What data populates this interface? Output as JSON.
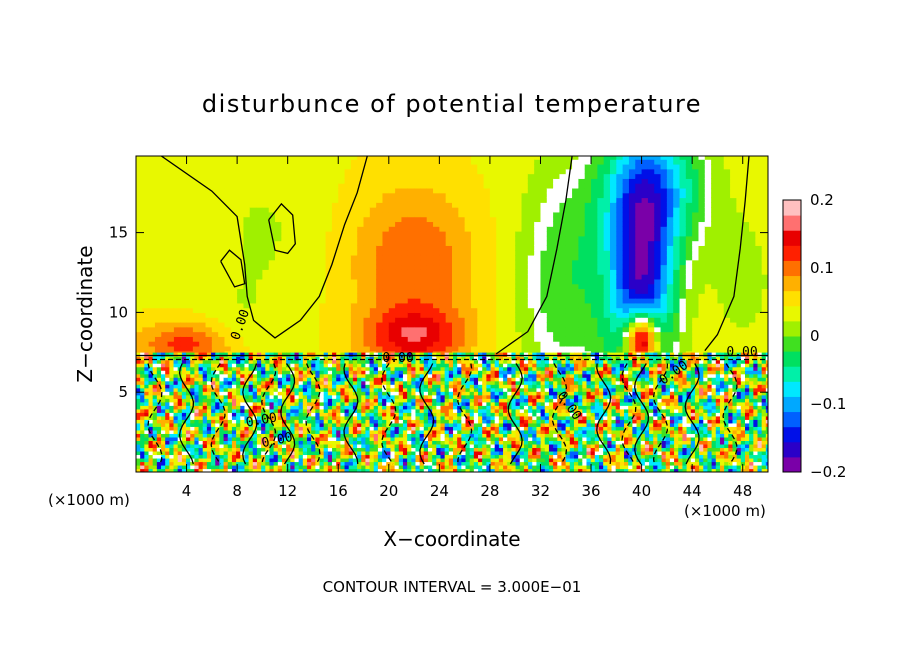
{
  "chart_data": {
    "type": "heatmap",
    "title": "disturbunce of potential temperature",
    "xlabel": "X−coordinate",
    "ylabel": "Z−coordinate",
    "x_unit_left": "(×1000 m)",
    "x_unit_right": "(×1000 m)",
    "xlim": [
      0,
      50
    ],
    "ylim": [
      0,
      19.8
    ],
    "x_ticks": [
      4,
      8,
      12,
      16,
      20,
      24,
      28,
      32,
      36,
      40,
      44,
      48
    ],
    "x_tick_labels": [
      "4",
      "8",
      "12",
      "16",
      "20",
      "24",
      "28",
      "32",
      "36",
      "40",
      "44",
      "48"
    ],
    "y_ticks": [
      5,
      10,
      15
    ],
    "y_tick_labels": [
      "5",
      "10",
      "15"
    ],
    "colorbar": {
      "min": -0.2,
      "max": 0.2,
      "ticks": [
        0.2,
        0.1,
        0,
        -0.1,
        -0.2
      ],
      "tick_labels": [
        "0.2",
        "0.1",
        "0",
        "−0.1",
        "−0.2"
      ]
    },
    "contour_labels": [
      "0.00",
      "0.00",
      "0.00",
      "0.00",
      "0.00",
      "0.00",
      "0.00"
    ],
    "footer": "CONTOUR INTERVAL = 3.000E−01"
  },
  "colors": {
    "palette": [
      "#7a00a8",
      "#2a00c8",
      "#0010e8",
      "#0060ff",
      "#00a8ff",
      "#00e8ff",
      "#00f0a8",
      "#00e060",
      "#40e020",
      "#a0f000",
      "#e8f800",
      "#ffe000",
      "#ffb000",
      "#ff7000",
      "#ff2000",
      "#e80000",
      "#ff7070",
      "#ffc0c0"
    ]
  }
}
